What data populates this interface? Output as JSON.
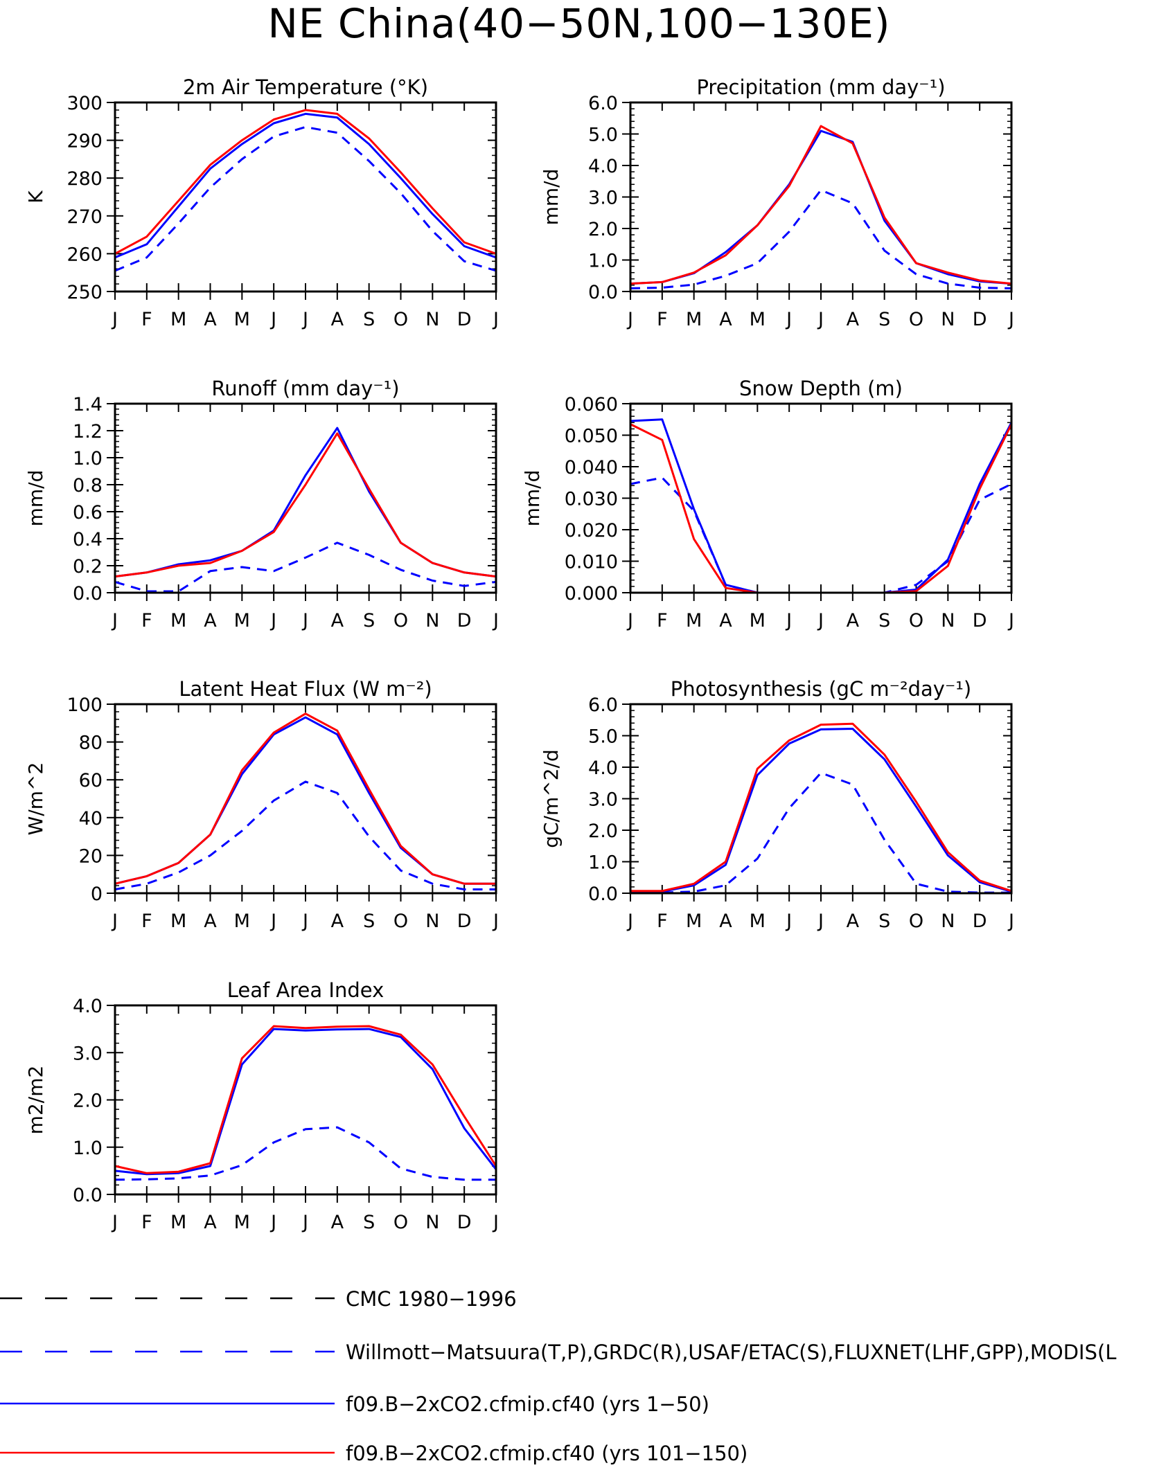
{
  "title": "NE China(40−50N,100−130E)",
  "legend": [
    {
      "label": "CMC 1980−1996",
      "color": "#000000",
      "dash": true
    },
    {
      "label": "Willmott−Matsuura(T,P),GRDC(R),USAF/ETAC(S),FLUXNET(LHF,GPP),MODIS(L",
      "color": "#0000ff",
      "dash": true
    },
    {
      "label": "f09.B−2xCO2.cfmip.cf40 (yrs 1−50)",
      "color": "#0000ff",
      "dash": false
    },
    {
      "label": "f09.B−2xCO2.cfmip.cf40 (yrs 101−150)",
      "color": "#ff0000",
      "dash": false
    }
  ],
  "chart_data": [
    {
      "type": "line",
      "title": "2m Air Temperature (°K)",
      "ylabel": "K",
      "categories": [
        "J",
        "F",
        "M",
        "A",
        "M",
        "J",
        "J",
        "A",
        "S",
        "O",
        "N",
        "D",
        "J"
      ],
      "ylim": [
        250,
        300
      ],
      "yticks": [
        "250",
        "260",
        "270",
        "280",
        "290",
        "300"
      ],
      "series": [
        {
          "style": "obs",
          "color": "#0000ff",
          "dash": true,
          "values": [
            255.5,
            259,
            268,
            277.5,
            285,
            291,
            293.5,
            292,
            284.5,
            276,
            266,
            258,
            255.5
          ]
        },
        {
          "style": "model-1-50",
          "color": "#0000ff",
          "dash": false,
          "values": [
            259,
            262.5,
            272.5,
            282.5,
            289,
            294.5,
            297,
            296,
            289,
            280,
            270.5,
            262,
            259
          ]
        },
        {
          "style": "model-101-150",
          "color": "#ff0000",
          "dash": false,
          "values": [
            260,
            264.5,
            274,
            283.5,
            290,
            295.5,
            298,
            297,
            290.5,
            281.5,
            272,
            263,
            260
          ]
        }
      ]
    },
    {
      "type": "line",
      "title": "Precipitation (mm day⁻¹)",
      "ylabel": "mm/d",
      "categories": [
        "J",
        "F",
        "M",
        "A",
        "M",
        "J",
        "J",
        "A",
        "S",
        "O",
        "N",
        "D",
        "J"
      ],
      "ylim": [
        0,
        6
      ],
      "yticks": [
        "0.0",
        "1.0",
        "2.0",
        "3.0",
        "4.0",
        "5.0",
        "6.0"
      ],
      "series": [
        {
          "style": "obs",
          "color": "#0000ff",
          "dash": true,
          "values": [
            0.1,
            0.12,
            0.22,
            0.5,
            0.9,
            1.9,
            3.22,
            2.8,
            1.3,
            0.55,
            0.25,
            0.12,
            0.1
          ]
        },
        {
          "style": "model-1-50",
          "color": "#0000ff",
          "dash": false,
          "values": [
            0.25,
            0.3,
            0.58,
            1.25,
            2.1,
            3.4,
            5.1,
            4.75,
            2.25,
            0.9,
            0.55,
            0.32,
            0.25
          ]
        },
        {
          "style": "model-101-150",
          "color": "#ff0000",
          "dash": false,
          "values": [
            0.25,
            0.3,
            0.6,
            1.15,
            2.1,
            3.35,
            5.25,
            4.7,
            2.35,
            0.9,
            0.6,
            0.35,
            0.25
          ]
        }
      ]
    },
    {
      "type": "line",
      "title": "Runoff (mm day⁻¹)",
      "ylabel": "mm/d",
      "categories": [
        "J",
        "F",
        "M",
        "A",
        "M",
        "J",
        "J",
        "A",
        "S",
        "O",
        "N",
        "D",
        "J"
      ],
      "ylim": [
        0,
        1.4
      ],
      "yticks": [
        "0.0",
        "0.2",
        "0.4",
        "0.6",
        "0.8",
        "1.0",
        "1.2",
        "1.4"
      ],
      "series": [
        {
          "style": "obs",
          "color": "#0000ff",
          "dash": true,
          "values": [
            0.08,
            0.01,
            0.01,
            0.16,
            0.19,
            0.16,
            0.26,
            0.37,
            0.28,
            0.17,
            0.09,
            0.05,
            0.08
          ]
        },
        {
          "style": "model-1-50",
          "color": "#0000ff",
          "dash": false,
          "values": [
            0.12,
            0.15,
            0.21,
            0.24,
            0.31,
            0.46,
            0.87,
            1.22,
            0.75,
            0.37,
            0.22,
            0.15,
            0.12
          ]
        },
        {
          "style": "model-101-150",
          "color": "#ff0000",
          "dash": false,
          "values": [
            0.12,
            0.15,
            0.2,
            0.22,
            0.31,
            0.45,
            0.8,
            1.18,
            0.77,
            0.37,
            0.22,
            0.15,
            0.12
          ]
        }
      ]
    },
    {
      "type": "line",
      "title": "Snow Depth (m)",
      "ylabel": "mm/d",
      "categories": [
        "J",
        "F",
        "M",
        "A",
        "M",
        "J",
        "J",
        "A",
        "S",
        "O",
        "N",
        "D",
        "J"
      ],
      "ylim": [
        0,
        0.06
      ],
      "yticks": [
        "0.000",
        "0.010",
        "0.020",
        "0.030",
        "0.040",
        "0.050",
        "0.060"
      ],
      "series": [
        {
          "style": "cmc",
          "color": "#000000",
          "dash": true,
          "values": [
            0,
            0,
            0,
            0,
            0,
            0,
            0,
            0,
            0,
            0,
            0,
            0,
            0
          ]
        },
        {
          "style": "obs",
          "color": "#0000ff",
          "dash": true,
          "values": [
            0.0345,
            0.0365,
            0.026,
            0.0025,
            0,
            0,
            0,
            0,
            0,
            0.0025,
            0.01,
            0.0295,
            0.0345
          ]
        },
        {
          "style": "model-1-50",
          "color": "#0000ff",
          "dash": false,
          "values": [
            0.0545,
            0.055,
            0.0265,
            0.0025,
            0,
            0,
            0,
            0,
            0,
            0.001,
            0.0105,
            0.0345,
            0.054
          ]
        },
        {
          "style": "model-101-150",
          "color": "#ff0000",
          "dash": false,
          "values": [
            0.0535,
            0.0485,
            0.017,
            0.0015,
            0,
            0,
            0,
            0,
            0,
            0.0005,
            0.0085,
            0.033,
            0.0535
          ]
        }
      ]
    },
    {
      "type": "line",
      "title": "Latent Heat Flux (W m⁻²)",
      "ylabel": "W/m^2",
      "categories": [
        "J",
        "F",
        "M",
        "A",
        "M",
        "J",
        "J",
        "A",
        "S",
        "O",
        "N",
        "D",
        "J"
      ],
      "ylim": [
        0,
        100
      ],
      "yticks": [
        "0",
        "20",
        "40",
        "60",
        "80",
        "100"
      ],
      "series": [
        {
          "style": "obs",
          "color": "#0000ff",
          "dash": true,
          "values": [
            2,
            5,
            11,
            20,
            33,
            49,
            59,
            53,
            30,
            12,
            5,
            2,
            2
          ]
        },
        {
          "style": "model-1-50",
          "color": "#0000ff",
          "dash": false,
          "values": [
            5,
            9,
            16,
            31,
            63,
            84,
            93,
            84,
            53,
            24,
            10,
            5,
            5
          ]
        },
        {
          "style": "model-101-150",
          "color": "#ff0000",
          "dash": false,
          "values": [
            5,
            9,
            16,
            31,
            65,
            85,
            95,
            86,
            55,
            25,
            10,
            5,
            5
          ]
        }
      ]
    },
    {
      "type": "line",
      "title": "Photosynthesis (gC m⁻²day⁻¹)",
      "ylabel": "gC/m^2/d",
      "categories": [
        "J",
        "F",
        "M",
        "A",
        "M",
        "J",
        "J",
        "A",
        "S",
        "O",
        "N",
        "D",
        "J"
      ],
      "ylim": [
        0,
        6
      ],
      "yticks": [
        "0.0",
        "1.0",
        "2.0",
        "3.0",
        "4.0",
        "5.0",
        "6.0"
      ],
      "series": [
        {
          "style": "obs",
          "color": "#0000ff",
          "dash": true,
          "values": [
            0.02,
            0.02,
            0.05,
            0.25,
            1.1,
            2.7,
            3.82,
            3.45,
            1.7,
            0.3,
            0.05,
            0.02,
            0.02
          ]
        },
        {
          "style": "model-1-50",
          "color": "#0000ff",
          "dash": false,
          "values": [
            0.05,
            0.05,
            0.25,
            0.9,
            3.75,
            4.75,
            5.2,
            5.22,
            4.25,
            2.75,
            1.2,
            0.35,
            0.05
          ]
        },
        {
          "style": "model-101-150",
          "color": "#ff0000",
          "dash": false,
          "values": [
            0.07,
            0.07,
            0.3,
            1.0,
            3.95,
            4.85,
            5.35,
            5.38,
            4.4,
            2.9,
            1.3,
            0.4,
            0.07
          ]
        }
      ]
    },
    {
      "type": "line",
      "title": "Leaf Area Index",
      "ylabel": "m2/m2",
      "categories": [
        "J",
        "F",
        "M",
        "A",
        "M",
        "J",
        "J",
        "A",
        "S",
        "O",
        "N",
        "D",
        "J"
      ],
      "ylim": [
        0,
        4
      ],
      "yticks": [
        "0.0",
        "1.0",
        "2.0",
        "3.0",
        "4.0"
      ],
      "series": [
        {
          "style": "obs",
          "color": "#0000ff",
          "dash": true,
          "values": [
            0.31,
            0.32,
            0.34,
            0.4,
            0.62,
            1.1,
            1.38,
            1.42,
            1.1,
            0.55,
            0.37,
            0.31,
            0.31
          ]
        },
        {
          "style": "model-1-50",
          "color": "#0000ff",
          "dash": false,
          "values": [
            0.5,
            0.43,
            0.45,
            0.6,
            2.75,
            3.5,
            3.47,
            3.49,
            3.5,
            3.33,
            2.65,
            1.4,
            0.53
          ]
        },
        {
          "style": "model-101-150",
          "color": "#ff0000",
          "dash": false,
          "values": [
            0.6,
            0.45,
            0.48,
            0.66,
            2.88,
            3.56,
            3.52,
            3.55,
            3.56,
            3.38,
            2.75,
            1.65,
            0.6
          ]
        }
      ]
    }
  ]
}
